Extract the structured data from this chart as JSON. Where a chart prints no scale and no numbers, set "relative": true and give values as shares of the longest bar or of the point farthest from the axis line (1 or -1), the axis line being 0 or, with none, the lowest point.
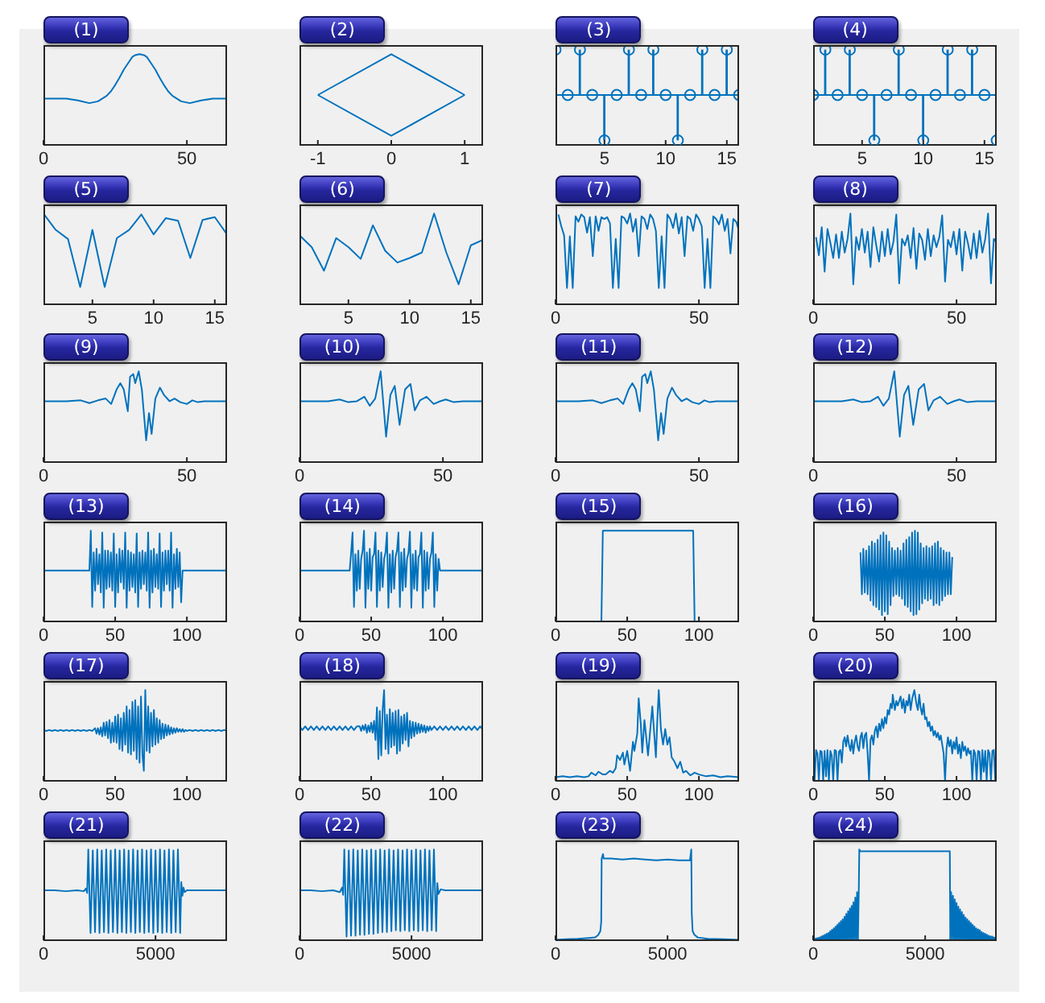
{
  "chart_data": [
    {
      "type": "line",
      "title": "(1)",
      "x": [
        0,
        4,
        8,
        12,
        16,
        19,
        22,
        23.5,
        25,
        26.5,
        28,
        29.5,
        31,
        32,
        33.5,
        35,
        36,
        37.5,
        39,
        40.5,
        42,
        43.5,
        45,
        48,
        51,
        55,
        59,
        64
      ],
      "values": [
        0.51,
        0.51,
        0.51,
        0.49,
        0.46,
        0.48,
        0.54,
        0.59,
        0.66,
        0.74,
        0.83,
        0.9,
        0.97,
        0.99,
        1,
        0.99,
        0.97,
        0.9,
        0.83,
        0.74,
        0.66,
        0.59,
        0.54,
        0.48,
        0.46,
        0.49,
        0.51,
        0.51
      ],
      "color": "#0072bd",
      "relative": true,
      "xlim": [
        0,
        64
      ],
      "xticks": [
        0,
        50
      ],
      "tick_labels": "x"
    },
    {
      "type": "line",
      "title": "(2)",
      "series": [
        {
          "x": [
            -1,
            0,
            1
          ],
          "values": [
            0.55,
            1,
            0.55
          ],
          "color": "#0072bd"
        },
        {
          "x": [
            -1,
            0,
            1
          ],
          "values": [
            0.55,
            0.1,
            0.55
          ],
          "color": "#0072bd"
        }
      ],
      "relative": true,
      "xlim": [
        -1.25,
        1.25
      ],
      "xticks": [
        -1,
        0,
        1
      ],
      "tick_labels": "x"
    },
    {
      "type": "lollipop",
      "title": "(3)",
      "x": [
        1,
        2,
        3,
        4,
        5,
        6,
        7,
        8,
        9,
        10,
        11,
        12,
        13,
        14,
        15,
        16
      ],
      "values": [
        1,
        0,
        1,
        0,
        -1,
        0,
        1,
        0,
        1,
        0,
        -1,
        0,
        1,
        0,
        1,
        0
      ],
      "color": "#0072bd",
      "marker": "circle",
      "relative": true,
      "ref_lines": [
        {
          "axis": "y",
          "value": 0,
          "color": "#0072bd"
        }
      ],
      "xlim": [
        1,
        16
      ],
      "xticks": [
        5,
        10,
        15
      ],
      "tick_labels": "x"
    },
    {
      "type": "lollipop",
      "title": "(4)",
      "x": [
        1,
        2,
        3,
        4,
        5,
        6,
        7,
        8,
        9,
        10,
        11,
        12,
        13,
        14,
        15,
        16
      ],
      "values": [
        0,
        1,
        0,
        1,
        0,
        -1,
        0,
        1,
        0,
        -1,
        0,
        1,
        0,
        1,
        0,
        -1
      ],
      "color": "#0072bd",
      "marker": "circle",
      "relative": true,
      "ref_lines": [
        {
          "axis": "y",
          "value": 0,
          "color": "#0072bd"
        }
      ],
      "xlim": [
        1,
        16
      ],
      "xticks": [
        5,
        10,
        15
      ],
      "tick_labels": "x"
    },
    {
      "type": "line",
      "title": "(5)",
      "x": [
        1,
        2,
        3,
        4,
        5,
        6,
        7,
        8,
        9,
        10,
        11,
        12,
        13,
        14,
        15,
        16
      ],
      "values": [
        1,
        0.82,
        0.72,
        0.19,
        0.82,
        0.19,
        0.73,
        0.82,
        0.99,
        0.77,
        0.95,
        0.92,
        0.51,
        0.93,
        0.96,
        0.77
      ],
      "color": "#0072bd",
      "relative": true,
      "xlim": [
        1,
        16
      ],
      "xticks": [
        5,
        10,
        15
      ],
      "tick_labels": "x"
    },
    {
      "type": "line",
      "title": "(6)",
      "x": [
        1,
        2,
        3,
        4,
        5,
        6,
        7,
        8,
        9,
        10,
        11,
        12,
        13,
        14,
        15,
        16
      ],
      "values": [
        0.76,
        0.63,
        0.37,
        0.73,
        0.63,
        0.5,
        0.87,
        0.59,
        0.46,
        0.51,
        0.57,
        1,
        0.57,
        0.22,
        0.65,
        0.71
      ],
      "color": "#0072bd",
      "relative": true,
      "xlim": [
        1,
        16
      ],
      "xticks": [
        5,
        10,
        15
      ],
      "tick_labels": "x"
    },
    {
      "type": "line",
      "title": "(7)",
      "x": [
        1,
        2,
        3,
        4,
        5,
        6,
        7,
        8,
        9,
        10,
        11,
        12,
        13,
        14,
        15,
        16,
        17,
        18,
        19,
        20,
        21,
        22,
        23,
        24,
        25,
        26,
        27,
        28,
        29,
        30,
        31,
        32,
        33,
        34,
        35,
        36,
        37,
        38,
        39,
        40,
        41,
        42,
        43,
        44,
        45,
        46,
        47,
        48,
        49,
        50,
        51,
        52,
        53,
        54,
        55,
        56,
        57,
        58,
        59,
        60,
        61,
        62,
        63,
        64
      ],
      "values": [
        0.99,
        0.86,
        0.76,
        0.18,
        0.75,
        0.18,
        0.97,
        0.91,
        0.99,
        0.96,
        0.79,
        0.96,
        0.53,
        0.97,
        0.81,
        0.96,
        0.94,
        0.96,
        0.89,
        0.18,
        0.72,
        0.18,
        0.97,
        0.95,
        0.89,
        1,
        0.8,
        0.94,
        0.53,
        0.97,
        0.94,
        0.83,
        0.99,
        0.94,
        0.81,
        0.18,
        0.75,
        0.18,
        0.99,
        0.94,
        0.84,
        1,
        0.78,
        0.96,
        0.53,
        0.97,
        0.94,
        0.81,
        0.99,
        0.94,
        0.86,
        0.18,
        0.72,
        0.18,
        0.97,
        0.94,
        0.88,
        0.99,
        0.81,
        0.94,
        0.56,
        0.94,
        0.91,
        0.81
      ],
      "color": "#0072bd",
      "relative": true,
      "xlim": [
        0,
        64
      ],
      "xticks": [
        0,
        50
      ],
      "tick_labels": "x"
    },
    {
      "type": "line",
      "title": "(8)",
      "x": [
        1,
        2,
        3,
        4,
        5,
        6,
        7,
        8,
        9,
        10,
        11,
        12,
        13,
        14,
        15,
        16,
        17,
        18,
        19,
        20,
        21,
        22,
        23,
        24,
        25,
        26,
        27,
        28,
        29,
        30,
        31,
        32,
        33,
        34,
        35,
        36,
        37,
        38,
        39,
        40,
        41,
        42,
        43,
        44,
        45,
        46,
        47,
        48,
        49,
        50,
        51,
        52,
        53,
        54,
        55,
        56,
        57,
        58,
        59,
        60,
        61,
        62,
        63,
        64
      ],
      "values": [
        0.74,
        0.54,
        0.85,
        0.36,
        0.83,
        0.68,
        0.51,
        0.77,
        0.51,
        0.8,
        0.57,
        0.72,
        1,
        0.22,
        0.74,
        0.6,
        0.83,
        0.57,
        0.8,
        0.41,
        0.85,
        0.65,
        0.47,
        0.8,
        0.53,
        0.83,
        0.55,
        0.69,
        0.99,
        0.23,
        0.72,
        0.65,
        0.76,
        0.51,
        0.84,
        0.39,
        0.78,
        0.71,
        0.49,
        0.83,
        0.53,
        0.76,
        0.63,
        0.74,
        0.98,
        0.25,
        0.71,
        0.63,
        0.8,
        0.55,
        0.83,
        0.37,
        0.8,
        0.67,
        0.5,
        0.78,
        0.51,
        0.81,
        0.57,
        0.72,
        1,
        0.23,
        0.72,
        0.69
      ],
      "color": "#0072bd",
      "relative": true,
      "xlim": [
        0,
        64
      ],
      "xticks": [
        0,
        50
      ],
      "tick_labels": "x"
    },
    {
      "type": "line",
      "title": "(9)",
      "x": [
        0,
        8,
        13,
        16,
        19,
        21.7,
        23.6,
        25.5,
        26.8,
        28,
        29.4,
        30.2,
        31.3,
        32,
        33.2,
        34.3,
        35.8,
        36.8,
        37.7,
        39,
        40.6,
        42,
        44,
        45.7,
        47.7,
        50,
        51.9,
        53.8,
        56,
        64
      ],
      "values": [
        0.67,
        0.67,
        0.68,
        0.65,
        0.68,
        0.7,
        0.64,
        0.8,
        0.87,
        0.8,
        0.56,
        0.94,
        0.97,
        0.87,
        1,
        0.8,
        0.24,
        0.54,
        0.31,
        0.7,
        0.82,
        0.74,
        0.67,
        0.7,
        0.66,
        0.64,
        0.68,
        0.66,
        0.67,
        0.67
      ],
      "color": "#0072bd",
      "relative": true,
      "xlim": [
        0,
        64
      ],
      "xticks": [
        0,
        50
      ],
      "tick_labels": "x"
    },
    {
      "type": "line",
      "title": "(10)",
      "x": [
        0,
        10,
        14,
        17,
        20,
        22.6,
        24.5,
        26.4,
        28.3,
        30.2,
        31.7,
        33.2,
        34.9,
        36.8,
        38.7,
        40.2,
        42,
        44.3,
        46.8,
        49,
        51,
        53.8,
        57,
        64
      ],
      "values": [
        0.67,
        0.67,
        0.69,
        0.66,
        0.67,
        0.72,
        0.62,
        0.7,
        1,
        0.28,
        0.74,
        0.84,
        0.41,
        0.8,
        0.86,
        0.57,
        0.68,
        0.72,
        0.64,
        0.67,
        0.69,
        0.66,
        0.67,
        0.67
      ],
      "color": "#0072bd",
      "relative": true,
      "xlim": [
        0,
        64
      ],
      "xticks": [
        0,
        50
      ],
      "tick_labels": "x"
    },
    {
      "type": "line",
      "title": "(11)",
      "x": [
        0,
        8,
        13,
        16,
        19,
        21.7,
        23.6,
        25.5,
        26.8,
        28,
        29.4,
        30.2,
        31.3,
        32,
        33.2,
        34.3,
        35.8,
        36.8,
        37.7,
        39,
        40.6,
        42,
        44,
        45.7,
        47.7,
        50,
        51.9,
        53.8,
        56,
        64
      ],
      "values": [
        0.67,
        0.67,
        0.68,
        0.65,
        0.68,
        0.7,
        0.64,
        0.8,
        0.87,
        0.8,
        0.56,
        0.94,
        0.97,
        0.87,
        1,
        0.8,
        0.24,
        0.54,
        0.31,
        0.7,
        0.82,
        0.74,
        0.67,
        0.7,
        0.66,
        0.64,
        0.68,
        0.66,
        0.67,
        0.67
      ],
      "color": "#0072bd",
      "relative": true,
      "xlim": [
        0,
        64
      ],
      "xticks": [
        0,
        50
      ],
      "tick_labels": "x"
    },
    {
      "type": "line",
      "title": "(12)",
      "x": [
        0,
        10,
        14,
        17,
        20,
        22.6,
        24.5,
        26.4,
        28.3,
        30.2,
        31.7,
        33.2,
        34.9,
        36.8,
        38.7,
        40.2,
        42,
        44.3,
        46.8,
        49,
        51,
        53.8,
        57,
        64
      ],
      "values": [
        0.67,
        0.67,
        0.69,
        0.66,
        0.67,
        0.72,
        0.62,
        0.7,
        1,
        0.28,
        0.74,
        0.84,
        0.41,
        0.8,
        0.86,
        0.57,
        0.68,
        0.72,
        0.64,
        0.67,
        0.69,
        0.66,
        0.67,
        0.67
      ],
      "color": "#0072bd",
      "relative": true,
      "xlim": [
        0,
        64
      ],
      "xticks": [
        0,
        50
      ],
      "tick_labels": "x"
    },
    {
      "type": "line",
      "title": "(13)",
      "x": [
        0,
        32,
        33,
        34,
        35,
        36,
        37,
        38,
        39,
        40,
        41,
        42,
        43,
        44,
        45,
        46,
        47,
        48,
        49,
        50,
        51,
        52,
        53,
        54,
        55,
        56,
        57,
        58,
        59,
        60,
        61,
        62,
        63,
        64,
        65,
        66,
        67,
        68,
        69,
        70,
        71,
        72,
        73,
        74,
        75,
        76,
        77,
        78,
        79,
        80,
        81,
        82,
        83,
        84,
        85,
        86,
        87,
        88,
        89,
        90,
        91,
        92,
        93,
        94,
        95,
        96,
        97,
        128
      ],
      "values": [
        0.56,
        0.56,
        1,
        0.16,
        0.76,
        0.34,
        0.8,
        0.41,
        0.74,
        0.32,
        0.98,
        0.15,
        0.78,
        0.36,
        0.78,
        0.38,
        0.76,
        0.34,
        0.97,
        0.16,
        0.74,
        0.32,
        0.8,
        0.43,
        0.78,
        0.36,
        0.98,
        0.15,
        0.78,
        0.34,
        0.76,
        0.38,
        0.74,
        0.32,
        0.97,
        0.16,
        0.76,
        0.36,
        0.78,
        0.41,
        0.76,
        0.34,
        0.98,
        0.15,
        0.78,
        0.32,
        0.8,
        0.38,
        0.74,
        0.36,
        0.97,
        0.16,
        0.76,
        0.34,
        0.78,
        0.41,
        0.78,
        0.34,
        0.98,
        0.15,
        0.74,
        0.36,
        0.8,
        0.38,
        0.76,
        0.21,
        0.56,
        0.56
      ],
      "color": "#0072bd",
      "relative": true,
      "xlim": [
        0,
        128
      ],
      "xticks": [
        0,
        50,
        100
      ],
      "tick_labels": "x"
    },
    {
      "type": "line",
      "title": "(14)",
      "x": [
        0,
        35,
        36,
        37,
        38,
        39,
        40,
        41,
        42,
        43,
        44,
        45,
        46,
        47,
        48,
        49,
        50,
        51,
        52,
        53,
        54,
        55,
        56,
        57,
        58,
        59,
        60,
        61,
        62,
        63,
        64,
        65,
        66,
        67,
        68,
        69,
        70,
        71,
        72,
        73,
        74,
        75,
        76,
        77,
        78,
        79,
        80,
        81,
        82,
        83,
        84,
        85,
        86,
        87,
        88,
        89,
        90,
        91,
        92,
        93,
        94,
        95,
        96,
        97,
        98,
        128
      ],
      "values": [
        0.56,
        0.56,
        0.76,
        0.98,
        0.16,
        0.74,
        0.34,
        0.78,
        0.36,
        0.69,
        0.78,
        1,
        0.15,
        0.76,
        0.36,
        0.8,
        0.34,
        0.71,
        0.74,
        0.98,
        0.16,
        0.78,
        0.34,
        0.76,
        0.38,
        0.69,
        0.76,
        0.98,
        0.15,
        0.74,
        0.32,
        0.78,
        0.36,
        0.71,
        0.78,
        0.98,
        0.16,
        0.76,
        0.34,
        0.8,
        0.38,
        0.69,
        0.76,
        0.99,
        0.15,
        0.74,
        0.36,
        0.78,
        0.34,
        0.71,
        0.74,
        0.98,
        0.15,
        0.78,
        0.34,
        0.76,
        0.36,
        0.69,
        0.76,
        0.98,
        0.16,
        0.74,
        0.34,
        0.69,
        0.56,
        0.56
      ],
      "color": "#0072bd",
      "relative": true,
      "xlim": [
        0,
        128
      ],
      "xticks": [
        0,
        50,
        100
      ],
      "tick_labels": "x"
    },
    {
      "type": "line",
      "title": "(15)",
      "x": [
        0,
        32,
        33,
        96,
        97,
        128
      ],
      "values": [
        0,
        0,
        1,
        1,
        0,
        0
      ],
      "color": "#0072bd",
      "relative": true,
      "xlim": [
        0,
        128
      ],
      "xticks": [
        0,
        50,
        100
      ],
      "tick_labels": "x"
    },
    {
      "type": "line",
      "title": "(16)",
      "x": [
        33,
        34,
        35,
        36,
        37,
        38,
        39,
        40,
        41,
        42,
        43,
        44,
        45,
        46,
        47,
        48,
        49,
        50,
        51,
        52,
        53,
        54,
        55,
        56,
        57,
        58,
        59,
        60,
        61,
        62,
        63,
        64,
        65,
        66,
        67,
        68,
        69,
        70,
        71,
        72,
        73,
        74,
        75,
        76,
        77,
        78,
        79,
        80,
        81,
        82,
        83,
        84,
        85,
        86,
        87,
        88,
        89,
        90,
        91,
        92,
        93,
        94,
        95,
        96,
        97
      ],
      "values": [
        0.76,
        0.3,
        0.8,
        0.32,
        0.78,
        0.3,
        0.83,
        0.23,
        0.88,
        0.18,
        0.86,
        0.16,
        0.9,
        0.13,
        0.95,
        0.07,
        0.98,
        0.11,
        0.95,
        0.08,
        0.88,
        0.18,
        0.81,
        0.28,
        0.78,
        0.3,
        0.81,
        0.28,
        0.78,
        0.25,
        0.86,
        0.18,
        0.9,
        0.16,
        0.93,
        0.11,
        0.98,
        0.07,
        1,
        0.08,
        0.98,
        0.13,
        0.86,
        0.2,
        0.81,
        0.25,
        0.83,
        0.23,
        0.81,
        0.25,
        0.83,
        0.18,
        0.86,
        0.2,
        0.88,
        0.18,
        0.81,
        0.23,
        0.78,
        0.28,
        0.76,
        0.3,
        0.76,
        0.3,
        0.71
      ],
      "color": "#0072bd",
      "relative": true,
      "xlim": [
        0,
        128
      ],
      "xticks": [
        0,
        50,
        100
      ],
      "tick_labels": "x"
    },
    {
      "type": "line",
      "title": "(17)",
      "x": [
        0,
        2,
        4,
        6,
        8,
        10,
        12,
        14,
        16,
        18,
        20,
        22,
        24,
        26,
        28,
        30,
        32,
        34,
        36,
        37,
        38,
        39,
        40,
        41,
        42,
        43,
        44,
        45,
        46,
        47,
        48,
        49,
        50,
        51,
        52,
        53,
        54,
        55,
        56,
        57,
        58,
        59,
        60,
        61,
        62,
        63,
        64,
        65,
        66,
        67,
        68,
        69,
        70,
        71,
        72,
        73,
        74,
        75,
        76,
        77,
        78,
        79,
        80,
        81,
        82,
        83,
        84,
        85,
        86,
        87,
        88,
        89,
        90,
        91,
        92,
        93,
        94,
        95,
        96,
        97,
        98,
        99,
        100,
        102,
        104,
        106,
        108,
        110,
        112,
        114,
        116,
        118,
        120,
        122,
        124,
        126,
        128
      ],
      "values": [
        0.56,
        0.55,
        0.56,
        0.55,
        0.56,
        0.55,
        0.56,
        0.55,
        0.56,
        0.55,
        0.56,
        0.55,
        0.56,
        0.55,
        0.56,
        0.55,
        0.56,
        0.55,
        0.58,
        0.52,
        0.58,
        0.51,
        0.59,
        0.49,
        0.64,
        0.5,
        0.65,
        0.47,
        0.67,
        0.42,
        0.64,
        0.43,
        0.71,
        0.42,
        0.73,
        0.35,
        0.69,
        0.33,
        0.75,
        0.4,
        0.82,
        0.31,
        0.78,
        0.29,
        0.87,
        0.33,
        0.89,
        0.24,
        0.82,
        0.2,
        0.93,
        0.29,
        0.11,
        1,
        0.33,
        0.82,
        0.31,
        0.75,
        0.38,
        0.78,
        0.4,
        0.69,
        0.42,
        0.67,
        0.46,
        0.63,
        0.47,
        0.62,
        0.5,
        0.61,
        0.51,
        0.59,
        0.52,
        0.58,
        0.53,
        0.58,
        0.54,
        0.57,
        0.54,
        0.57,
        0.54,
        0.56,
        0.55,
        0.56,
        0.55,
        0.56,
        0.55,
        0.56,
        0.55,
        0.56,
        0.55,
        0.56,
        0.55,
        0.56,
        0.55,
        0.56,
        0.55
      ],
      "color": "#0072bd",
      "relative": true,
      "xlim": [
        0,
        128
      ],
      "xticks": [
        0,
        50,
        100
      ],
      "tick_labels": "x"
    },
    {
      "type": "line",
      "title": "(18)",
      "x": [
        0,
        2,
        4,
        6,
        8,
        10,
        12,
        14,
        16,
        18,
        20,
        22,
        24,
        26,
        28,
        30,
        32,
        34,
        36,
        38,
        40,
        42,
        43,
        44,
        45,
        46,
        47,
        48,
        49,
        50,
        51,
        52,
        53,
        54,
        55,
        56,
        57,
        58,
        59,
        60,
        61,
        62,
        63,
        64,
        65,
        66,
        67,
        68,
        69,
        70,
        71,
        72,
        73,
        74,
        75,
        76,
        77,
        78,
        79,
        80,
        81,
        82,
        83,
        84,
        85,
        86,
        87,
        88,
        89,
        90,
        91,
        92,
        94,
        96,
        98,
        100,
        102,
        104,
        106,
        108,
        110,
        112,
        114,
        116,
        118,
        120,
        122,
        124,
        126,
        128
      ],
      "values": [
        0.6,
        0.56,
        0.6,
        0.56,
        0.6,
        0.56,
        0.6,
        0.56,
        0.6,
        0.56,
        0.6,
        0.56,
        0.6,
        0.56,
        0.6,
        0.56,
        0.6,
        0.56,
        0.6,
        0.56,
        0.6,
        0.6,
        0.55,
        0.61,
        0.56,
        0.62,
        0.53,
        0.61,
        0.54,
        0.64,
        0.53,
        0.66,
        0.45,
        0.81,
        0.24,
        0.77,
        0.28,
        0.79,
        1,
        0.35,
        0.73,
        0.3,
        0.79,
        0.37,
        0.75,
        0.39,
        0.77,
        0.3,
        0.78,
        0.33,
        0.71,
        0.41,
        0.73,
        0.45,
        0.75,
        0.38,
        0.66,
        0.47,
        0.65,
        0.49,
        0.64,
        0.52,
        0.63,
        0.53,
        0.62,
        0.54,
        0.61,
        0.53,
        0.6,
        0.55,
        0.6,
        0.56,
        0.6,
        0.56,
        0.6,
        0.56,
        0.6,
        0.56,
        0.6,
        0.56,
        0.6,
        0.56,
        0.6,
        0.56,
        0.6,
        0.56,
        0.6,
        0.56,
        0.6,
        0.56
      ],
      "color": "#0072bd",
      "relative": true,
      "xlim": [
        0,
        128
      ],
      "xticks": [
        0,
        50,
        100
      ],
      "tick_labels": "x"
    },
    {
      "type": "line",
      "title": "(19)",
      "x": [
        0,
        5,
        10,
        15,
        20,
        23,
        25,
        28,
        30,
        33,
        35,
        38,
        40,
        42,
        43,
        45,
        47,
        48,
        50,
        52,
        54,
        55,
        57,
        58,
        59.5,
        60.5,
        62,
        63,
        64.5,
        66,
        67.5,
        69,
        70,
        71,
        72,
        73.5,
        75,
        76.5,
        78,
        79.5,
        81,
        83,
        85,
        87,
        89,
        91,
        94,
        97,
        100,
        105,
        110,
        115,
        120,
        128
      ],
      "values": [
        0.04,
        0.05,
        0.04,
        0.05,
        0.04,
        0.05,
        0.09,
        0.06,
        0.1,
        0.07,
        0.07,
        0.11,
        0.09,
        0.14,
        0.28,
        0.23,
        0.31,
        0.18,
        0.33,
        0.11,
        0.43,
        0.33,
        0.52,
        0.91,
        0.62,
        0.31,
        0.67,
        0.52,
        0.28,
        0.55,
        0.82,
        0.48,
        0.26,
        0.67,
        1,
        0.57,
        0.4,
        0.57,
        0.4,
        0.48,
        0.26,
        0.21,
        0.14,
        0.21,
        0.09,
        0.11,
        0.06,
        0.09,
        0.07,
        0.05,
        0.06,
        0.04,
        0.05,
        0.04
      ],
      "color": "#0072bd",
      "relative": true,
      "xlim": [
        0,
        128
      ],
      "xticks": [
        0,
        50,
        100
      ],
      "tick_labels": "x"
    },
    {
      "type": "line",
      "title": "(20)",
      "x": [
        0,
        1,
        2,
        3,
        4,
        5,
        6,
        7,
        8,
        9,
        10,
        11,
        12,
        13,
        14,
        15,
        16,
        17,
        18,
        19,
        20,
        21,
        22,
        23,
        24,
        25,
        26,
        27,
        28,
        29,
        30,
        31,
        32,
        33,
        34,
        35,
        36,
        37,
        38,
        39,
        40,
        41,
        42,
        43,
        44,
        45,
        46,
        47,
        48,
        49,
        50,
        51,
        52,
        53,
        54,
        55,
        55.5,
        57,
        58,
        59,
        61,
        62,
        63,
        64,
        65,
        66,
        67,
        68,
        69,
        70.6,
        72,
        73,
        74,
        75,
        76,
        77,
        78,
        79,
        80,
        81,
        82,
        83,
        84,
        85,
        86,
        87,
        88,
        89,
        90,
        91,
        92,
        93,
        94,
        95,
        96,
        97,
        98,
        99,
        100,
        101,
        102,
        103,
        104,
        105,
        106,
        107,
        108,
        109,
        110,
        111,
        112,
        113,
        114,
        115,
        116,
        117,
        118,
        119,
        120,
        121,
        122,
        123,
        124,
        125,
        126,
        127,
        128
      ],
      "values": [
        0.33,
        0,
        0.34,
        0.3,
        0,
        0.33,
        0.32,
        0,
        0.33,
        0.05,
        0.34,
        0,
        0.33,
        0.28,
        0,
        0.34,
        0.33,
        0,
        0.32,
        0.34,
        0.2,
        0.43,
        0.48,
        0.38,
        0.5,
        0.4,
        0.33,
        0.45,
        0.3,
        0.43,
        0.5,
        0.38,
        0.33,
        0.48,
        0.53,
        0.36,
        0.5,
        0.53,
        0.3,
        0,
        0.45,
        0.5,
        0.4,
        0.55,
        0.6,
        0.48,
        0.63,
        0.55,
        0.68,
        0.58,
        0.7,
        0.63,
        0.78,
        0.73,
        0.85,
        0.8,
        0.95,
        0.78,
        0.88,
        0.83,
        0.93,
        0.8,
        0.9,
        0.75,
        0.88,
        0.83,
        0.95,
        0.78,
        0.9,
        1,
        0.85,
        0.78,
        0.95,
        0.8,
        0.73,
        0.85,
        0.68,
        0.7,
        0.6,
        0.65,
        0.55,
        0.6,
        0.5,
        0.55,
        0.48,
        0.53,
        0.45,
        0.5,
        0.4,
        0.3,
        0,
        0.35,
        0.48,
        0.38,
        0.45,
        0.3,
        0.43,
        0.35,
        0.48,
        0.3,
        0.4,
        0.25,
        0.43,
        0.33,
        0.38,
        0.28,
        0.36,
        0.3,
        0.33,
        0,
        0.34,
        0.3,
        0,
        0.33,
        0.32,
        0,
        0.34,
        0.1,
        0.33,
        0,
        0.34,
        0.3,
        0,
        0.33,
        0.34,
        0,
        0.33
      ],
      "color": "#0072bd",
      "relative": true,
      "xlim": [
        0,
        128
      ],
      "xticks": [
        0,
        50,
        100
      ],
      "tick_labels": "x"
    },
    {
      "type": "line",
      "title": "(21)",
      "x": [
        0,
        500,
        1000,
        1500,
        1800,
        1900,
        1950,
        2000,
        2100,
        2200,
        2300,
        2400,
        2500,
        2600,
        2700,
        2800,
        2900,
        3000,
        3100,
        3200,
        3300,
        3400,
        3500,
        3600,
        3700,
        3800,
        3900,
        4000,
        4100,
        4200,
        4300,
        4400,
        4500,
        4600,
        4700,
        4800,
        4900,
        5000,
        5100,
        5200,
        5300,
        5400,
        5500,
        5600,
        5700,
        5800,
        5900,
        6000,
        6100,
        6150,
        6200,
        6250,
        6300,
        6400,
        7000,
        8192
      ],
      "values": [
        0.55,
        0.55,
        0.54,
        0.55,
        0.54,
        0.57,
        0.52,
        1,
        0.08,
        0.99,
        0.09,
        1,
        0.08,
        0.99,
        0.09,
        1,
        0.08,
        0.99,
        0.09,
        1,
        0.08,
        0.99,
        0.09,
        1,
        0.08,
        0.99,
        0.09,
        1,
        0.08,
        0.99,
        0.09,
        1,
        0.08,
        0.99,
        0.09,
        1,
        0.08,
        0.99,
        0.09,
        1,
        0.08,
        0.99,
        0.09,
        1,
        0.08,
        0.99,
        0.09,
        1,
        0.08,
        0.64,
        0.49,
        0.58,
        0.53,
        0.55,
        0.55,
        0.55
      ],
      "color": "#0072bd",
      "relative": true,
      "xlim": [
        0,
        8192
      ],
      "xticks": [
        0,
        5000
      ],
      "tick_labels": "x"
    },
    {
      "type": "line",
      "title": "(22)",
      "x": [
        0,
        500,
        1000,
        1500,
        1800,
        1900,
        1950,
        2000,
        2100,
        2200,
        2300,
        2400,
        2500,
        2600,
        2700,
        2800,
        2900,
        3000,
        3100,
        3200,
        3300,
        3400,
        3500,
        3600,
        3700,
        3800,
        3900,
        4000,
        4100,
        4200,
        4300,
        4400,
        4500,
        4600,
        4700,
        4800,
        4900,
        5000,
        5100,
        5200,
        5300,
        5400,
        5500,
        5600,
        5700,
        5800,
        5900,
        6000,
        6100,
        6150,
        6200,
        6300,
        6500,
        8192
      ],
      "values": [
        0.55,
        0.55,
        0.54,
        0.55,
        0.53,
        0.58,
        0.5,
        1,
        0.04,
        0.99,
        0.05,
        1,
        0.05,
        0.99,
        0.06,
        1,
        0.06,
        0.99,
        0.07,
        1,
        0.07,
        0.99,
        0.08,
        1,
        0.09,
        0.99,
        0.09,
        1,
        0.1,
        0.99,
        0.11,
        1,
        0.1,
        0.99,
        0.11,
        1,
        0.1,
        0.99,
        0.11,
        1,
        0.1,
        0.99,
        0.11,
        1,
        0.1,
        0.99,
        0.11,
        1,
        0.1,
        0.63,
        0.51,
        0.56,
        0.55,
        0.55
      ],
      "color": "#0072bd",
      "relative": true,
      "xlim": [
        0,
        8192
      ],
      "xticks": [
        0,
        5000
      ],
      "tick_labels": "x"
    },
    {
      "type": "line",
      "title": "(23)",
      "x": [
        0,
        500,
        1000,
        1500,
        1760,
        1900,
        2000,
        2040,
        2060,
        2120,
        2150,
        2500,
        3000,
        3500,
        4000,
        4500,
        5000,
        5500,
        6000,
        6060,
        6080,
        6120,
        6200,
        6350,
        6800,
        7500,
        8192
      ],
      "values": [
        0.005,
        0.01,
        0.015,
        0.025,
        0.03,
        0.055,
        0.1,
        0.2,
        0.9,
        0.95,
        0.9,
        0.9,
        0.89,
        0.9,
        0.89,
        0.88,
        0.89,
        0.88,
        0.88,
        1,
        0.3,
        0.1,
        0.06,
        0.03,
        0.015,
        0.01,
        0.005
      ],
      "color": "#0072bd",
      "relative": true,
      "xlim": [
        0,
        8192
      ],
      "xticks": [
        0,
        5000
      ],
      "tick_labels": "x"
    },
    {
      "type": "line",
      "title": "(24)",
      "x": [
        0,
        40,
        80,
        120,
        160,
        200,
        240,
        280,
        320,
        360,
        400,
        440,
        480,
        520,
        560,
        600,
        640,
        680,
        720,
        760,
        800,
        840,
        880,
        920,
        960,
        1000,
        1040,
        1080,
        1120,
        1160,
        1200,
        1240,
        1280,
        1320,
        1360,
        1400,
        1440,
        1480,
        1520,
        1560,
        1600,
        1640,
        1680,
        1720,
        1760,
        1800,
        1840,
        1880,
        1920,
        1960,
        2000,
        2040,
        2060,
        2100,
        3000,
        4000,
        5000,
        6000,
        6100,
        6120,
        6160,
        6200,
        6240,
        6280,
        6320,
        6360,
        6400,
        6440,
        6480,
        6520,
        6560,
        6600,
        6640,
        6680,
        6720,
        6760,
        6800,
        6840,
        6880,
        6920,
        6960,
        7000,
        7040,
        7080,
        7120,
        7160,
        7200,
        7240,
        7280,
        7320,
        7360,
        7400,
        7440,
        7480,
        7520,
        7560,
        7600,
        7640,
        7680,
        7720,
        7760,
        7800,
        7840,
        7880,
        7920,
        7960,
        8000,
        8040,
        8080,
        8120,
        8160,
        8192
      ],
      "values": [
        0,
        0.012,
        0,
        0.02,
        0,
        0.025,
        0,
        0.03,
        0,
        0.04,
        0,
        0.05,
        0,
        0.06,
        0,
        0.07,
        0,
        0.08,
        0,
        0.1,
        0,
        0.115,
        0,
        0.13,
        0,
        0.15,
        0,
        0.17,
        0,
        0.19,
        0,
        0.21,
        0,
        0.23,
        0,
        0.26,
        0,
        0.29,
        0,
        0.32,
        0,
        0.35,
        0,
        0.38,
        0,
        0.42,
        0,
        0.47,
        0,
        0.53,
        0,
        0.6,
        1,
        0.98,
        0.98,
        0.98,
        0.98,
        0.98,
        0.98,
        0,
        0.53,
        0,
        0.49,
        0,
        0.45,
        0,
        0.41,
        0,
        0.37,
        0,
        0.34,
        0,
        0.31,
        0,
        0.28,
        0,
        0.25,
        0,
        0.23,
        0,
        0.21,
        0,
        0.19,
        0,
        0.17,
        0,
        0.15,
        0,
        0.13,
        0,
        0.12,
        0,
        0.11,
        0,
        0.09,
        0,
        0.08,
        0,
        0.07,
        0,
        0.06,
        0,
        0.05,
        0,
        0.045,
        0,
        0.04,
        0,
        0.03,
        0,
        0.025,
        0
      ],
      "color": "#0072bd",
      "relative": true,
      "xlim": [
        0,
        8192
      ],
      "xticks": [
        0,
        5000
      ],
      "tick_labels": "x"
    }
  ]
}
